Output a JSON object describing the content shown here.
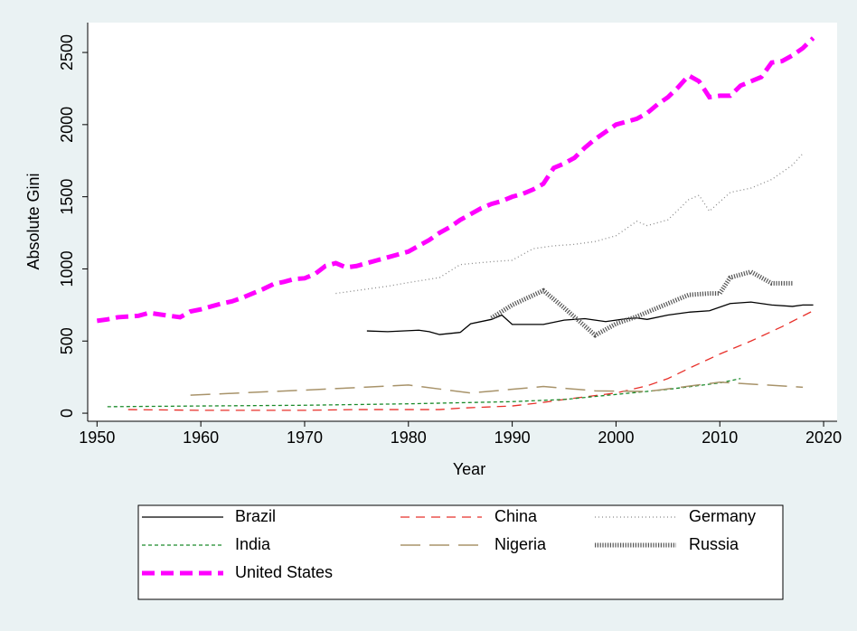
{
  "chart_data": {
    "type": "line",
    "xlabel": "Year",
    "ylabel": "Absolute Gini",
    "xlim": [
      1949.1,
      2021.3
    ],
    "ylim": [
      -56,
      2707
    ],
    "xticks": [
      1950,
      1960,
      1970,
      1980,
      1990,
      2000,
      2010,
      2020
    ],
    "yticks": [
      0,
      500,
      1000,
      1500,
      2000,
      2500
    ],
    "legend": "bottom",
    "series": [
      {
        "name": "Brazil",
        "color": "#000000",
        "style": "solid",
        "width": 1.3,
        "x": [
          1976,
          1978,
          1981,
          1982,
          1983,
          1985,
          1986,
          1988,
          1989,
          1990,
          1993,
          1995,
          1997,
          1999,
          2001,
          2002,
          2003,
          2005,
          2007,
          2009,
          2011,
          2013,
          2015,
          2017,
          2018,
          2019
        ],
        "values": [
          570,
          565,
          575,
          565,
          545,
          560,
          620,
          650,
          680,
          615,
          615,
          645,
          655,
          635,
          655,
          660,
          650,
          680,
          700,
          710,
          760,
          770,
          750,
          740,
          750,
          750
        ]
      },
      {
        "name": "China",
        "color": "#e8302a",
        "style": "dashed",
        "width": 1.3,
        "x": [
          1953,
          1960,
          1970,
          1975,
          1980,
          1983,
          1985,
          1990,
          1993,
          1995,
          2000,
          2003,
          2005,
          2007,
          2010,
          2013,
          2016,
          2019
        ],
        "values": [
          25,
          20,
          20,
          25,
          25,
          25,
          35,
          50,
          75,
          95,
          140,
          190,
          240,
          310,
          410,
          500,
          600,
          710
        ]
      },
      {
        "name": "Germany",
        "color": "#8a8a8a",
        "style": "dotted",
        "width": 1.3,
        "x": [
          1973,
          1975,
          1978,
          1980,
          1983,
          1985,
          1988,
          1990,
          1992,
          1994,
          1996,
          1998,
          2000,
          2002,
          2003,
          2005,
          2007,
          2008,
          2009,
          2011,
          2013,
          2015,
          2017,
          2018
        ],
        "values": [
          830,
          850,
          880,
          905,
          940,
          1030,
          1050,
          1060,
          1140,
          1160,
          1170,
          1190,
          1230,
          1330,
          1300,
          1340,
          1480,
          1510,
          1400,
          1530,
          1560,
          1620,
          1720,
          1800
        ]
      },
      {
        "name": "India",
        "color": "#1a8a2a",
        "style": "shortdash",
        "width": 1.3,
        "x": [
          1951,
          1960,
          1970,
          1980,
          1990,
          1995,
          2000,
          2005,
          2010,
          2012
        ],
        "values": [
          45,
          50,
          55,
          65,
          80,
          95,
          130,
          165,
          210,
          240
        ]
      },
      {
        "name": "Nigeria",
        "color": "#a8936a",
        "style": "longdash",
        "width": 1.5,
        "x": [
          1959,
          1970,
          1980,
          1986,
          1993,
          1998,
          2003,
          2010,
          2018
        ],
        "values": [
          125,
          160,
          195,
          140,
          185,
          155,
          150,
          215,
          180
        ]
      },
      {
        "name": "Russia",
        "color": "#555555",
        "style": "densedot",
        "width": 5,
        "x": [
          1988,
          1990,
          1993,
          1995,
          1998,
          2000,
          2002,
          2005,
          2007,
          2009,
          2010,
          2011,
          2013,
          2015,
          2017
        ],
        "values": [
          660,
          750,
          850,
          730,
          540,
          620,
          670,
          760,
          820,
          830,
          830,
          940,
          980,
          900,
          900
        ]
      },
      {
        "name": "United States",
        "color": "#ff00ff",
        "style": "thickdash",
        "width": 5,
        "x": [
          1950,
          1951,
          1952,
          1953,
          1954,
          1955,
          1956,
          1957,
          1958,
          1959,
          1960,
          1961,
          1962,
          1963,
          1964,
          1965,
          1966,
          1967,
          1968,
          1969,
          1970,
          1971,
          1972,
          1973,
          1974,
          1975,
          1976,
          1977,
          1978,
          1979,
          1980,
          1981,
          1982,
          1983,
          1984,
          1985,
          1986,
          1987,
          1988,
          1989,
          1990,
          1991,
          1992,
          1993,
          1994,
          1995,
          1996,
          1997,
          1998,
          1999,
          2000,
          2001,
          2002,
          2003,
          2004,
          2005,
          2006,
          2007,
          2008,
          2009,
          2010,
          2011,
          2012,
          2013,
          2014,
          2015,
          2016,
          2017,
          2018,
          2019
        ],
        "values": [
          640,
          650,
          665,
          670,
          675,
          695,
          685,
          675,
          665,
          705,
          720,
          740,
          760,
          775,
          800,
          830,
          860,
          895,
          910,
          930,
          935,
          965,
          1020,
          1040,
          1010,
          1020,
          1040,
          1060,
          1080,
          1100,
          1120,
          1160,
          1200,
          1250,
          1290,
          1340,
          1380,
          1420,
          1450,
          1470,
          1500,
          1520,
          1550,
          1590,
          1700,
          1730,
          1770,
          1840,
          1900,
          1950,
          2000,
          2020,
          2040,
          2080,
          2140,
          2190,
          2260,
          2340,
          2300,
          2190,
          2200,
          2200,
          2270,
          2300,
          2330,
          2430,
          2440,
          2480,
          2530,
          2600
        ]
      }
    ]
  }
}
